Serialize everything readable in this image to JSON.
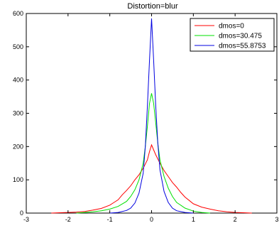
{
  "chart_data": {
    "type": "line",
    "title": "Distortion=blur",
    "xlabel": "",
    "ylabel": "",
    "xlim": [
      -3,
      3
    ],
    "ylim": [
      0,
      600
    ],
    "xticks": [
      -3,
      -2,
      -1,
      0,
      1,
      2,
      3
    ],
    "yticks": [
      0,
      100,
      200,
      300,
      400,
      500,
      600
    ],
    "xtick_labels": [
      "-3",
      "-2",
      "-1",
      "0",
      "1",
      "2",
      "3"
    ],
    "ytick_labels": [
      "0",
      "100",
      "200",
      "300",
      "400",
      "500",
      "600"
    ],
    "grid": false,
    "legend_position": "top-right",
    "series": [
      {
        "name": "dmos=0",
        "color": "#ff0000",
        "points": [
          [
            -2.4,
            0
          ],
          [
            -2.2,
            1
          ],
          [
            -2.0,
            2
          ],
          [
            -1.8,
            3
          ],
          [
            -1.6,
            5
          ],
          [
            -1.4,
            9
          ],
          [
            -1.2,
            14
          ],
          [
            -1.0,
            24
          ],
          [
            -0.9,
            32
          ],
          [
            -0.8,
            40
          ],
          [
            -0.7,
            55
          ],
          [
            -0.6,
            68
          ],
          [
            -0.5,
            82
          ],
          [
            -0.4,
            100
          ],
          [
            -0.3,
            115
          ],
          [
            -0.2,
            135
          ],
          [
            -0.1,
            160
          ],
          [
            -0.05,
            185
          ],
          [
            0.0,
            205
          ],
          [
            0.05,
            190
          ],
          [
            0.1,
            175
          ],
          [
            0.2,
            150
          ],
          [
            0.3,
            128
          ],
          [
            0.4,
            110
          ],
          [
            0.5,
            92
          ],
          [
            0.6,
            78
          ],
          [
            0.7,
            62
          ],
          [
            0.8,
            48
          ],
          [
            0.9,
            38
          ],
          [
            1.0,
            28
          ],
          [
            1.2,
            18
          ],
          [
            1.4,
            12
          ],
          [
            1.6,
            7
          ],
          [
            1.8,
            4
          ],
          [
            2.0,
            2
          ],
          [
            2.2,
            1
          ],
          [
            2.4,
            0
          ]
        ]
      },
      {
        "name": "dmos=30.475",
        "color": "#00e000",
        "points": [
          [
            -1.8,
            0
          ],
          [
            -1.6,
            2
          ],
          [
            -1.4,
            4
          ],
          [
            -1.2,
            7
          ],
          [
            -1.0,
            12
          ],
          [
            -0.8,
            20
          ],
          [
            -0.6,
            35
          ],
          [
            -0.5,
            50
          ],
          [
            -0.4,
            70
          ],
          [
            -0.3,
            100
          ],
          [
            -0.2,
            150
          ],
          [
            -0.15,
            200
          ],
          [
            -0.1,
            260
          ],
          [
            -0.05,
            330
          ],
          [
            0.0,
            360
          ],
          [
            0.05,
            330
          ],
          [
            0.1,
            270
          ],
          [
            0.15,
            210
          ],
          [
            0.2,
            160
          ],
          [
            0.3,
            110
          ],
          [
            0.4,
            75
          ],
          [
            0.5,
            50
          ],
          [
            0.6,
            32
          ],
          [
            0.8,
            15
          ],
          [
            1.0,
            6
          ],
          [
            1.2,
            2
          ],
          [
            1.4,
            0
          ]
        ]
      },
      {
        "name": "dmos=55.8753",
        "color": "#0000e0",
        "points": [
          [
            -1.0,
            0
          ],
          [
            -0.8,
            2
          ],
          [
            -0.6,
            8
          ],
          [
            -0.5,
            15
          ],
          [
            -0.4,
            30
          ],
          [
            -0.3,
            60
          ],
          [
            -0.2,
            120
          ],
          [
            -0.15,
            200
          ],
          [
            -0.1,
            320
          ],
          [
            -0.05,
            460
          ],
          [
            0.0,
            585
          ],
          [
            0.05,
            460
          ],
          [
            0.1,
            320
          ],
          [
            0.15,
            210
          ],
          [
            0.2,
            130
          ],
          [
            0.3,
            65
          ],
          [
            0.4,
            32
          ],
          [
            0.5,
            15
          ],
          [
            0.6,
            7
          ],
          [
            0.8,
            2
          ],
          [
            1.0,
            0
          ]
        ]
      }
    ]
  }
}
